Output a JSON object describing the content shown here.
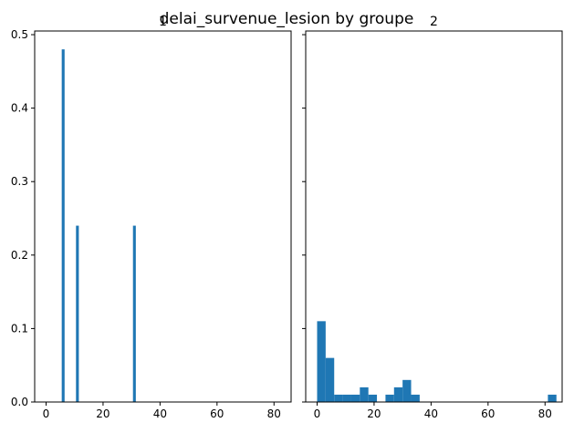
{
  "chart_data": {
    "type": "bar",
    "title": "delai_survenue_lesion by groupe",
    "shared_y": true,
    "ylim": [
      0,
      0.505
    ],
    "y_ticks": [
      0.0,
      0.1,
      0.2,
      0.3,
      0.4,
      0.5
    ],
    "y_tick_labels": [
      "0.0",
      "0.1",
      "0.2",
      "0.3",
      "0.4",
      "0.5"
    ],
    "colors": {
      "bar": "#1f77b4",
      "axes": "#000000",
      "background": "#ffffff"
    },
    "panels": [
      {
        "title": "1",
        "xlim": [
          -4,
          86
        ],
        "x_ticks": [
          0,
          20,
          40,
          60,
          80
        ],
        "x_tick_labels": [
          "0",
          "20",
          "40",
          "60",
          "80"
        ],
        "show_y_tick_labels": true,
        "bins": [
          {
            "x0": 5.5,
            "x1": 6.5,
            "value": 0.48
          },
          {
            "x0": 10.5,
            "x1": 11.5,
            "value": 0.24
          },
          {
            "x0": 30.5,
            "x1": 31.5,
            "value": 0.24
          }
        ]
      },
      {
        "title": "2",
        "xlim": [
          -4,
          86
        ],
        "x_ticks": [
          0,
          20,
          40,
          60,
          80
        ],
        "x_tick_labels": [
          "0",
          "20",
          "40",
          "60",
          "80"
        ],
        "show_y_tick_labels": false,
        "bins": [
          {
            "x0": 0,
            "x1": 3,
            "value": 0.11
          },
          {
            "x0": 3,
            "x1": 6,
            "value": 0.06
          },
          {
            "x0": 6,
            "x1": 9,
            "value": 0.01
          },
          {
            "x0": 9,
            "x1": 12,
            "value": 0.01
          },
          {
            "x0": 12,
            "x1": 15,
            "value": 0.01
          },
          {
            "x0": 15,
            "x1": 18,
            "value": 0.02
          },
          {
            "x0": 18,
            "x1": 21,
            "value": 0.01
          },
          {
            "x0": 24,
            "x1": 27,
            "value": 0.01
          },
          {
            "x0": 27,
            "x1": 30,
            "value": 0.02
          },
          {
            "x0": 30,
            "x1": 33,
            "value": 0.03
          },
          {
            "x0": 33,
            "x1": 36,
            "value": 0.01
          },
          {
            "x0": 81,
            "x1": 84,
            "value": 0.01
          }
        ]
      }
    ]
  }
}
